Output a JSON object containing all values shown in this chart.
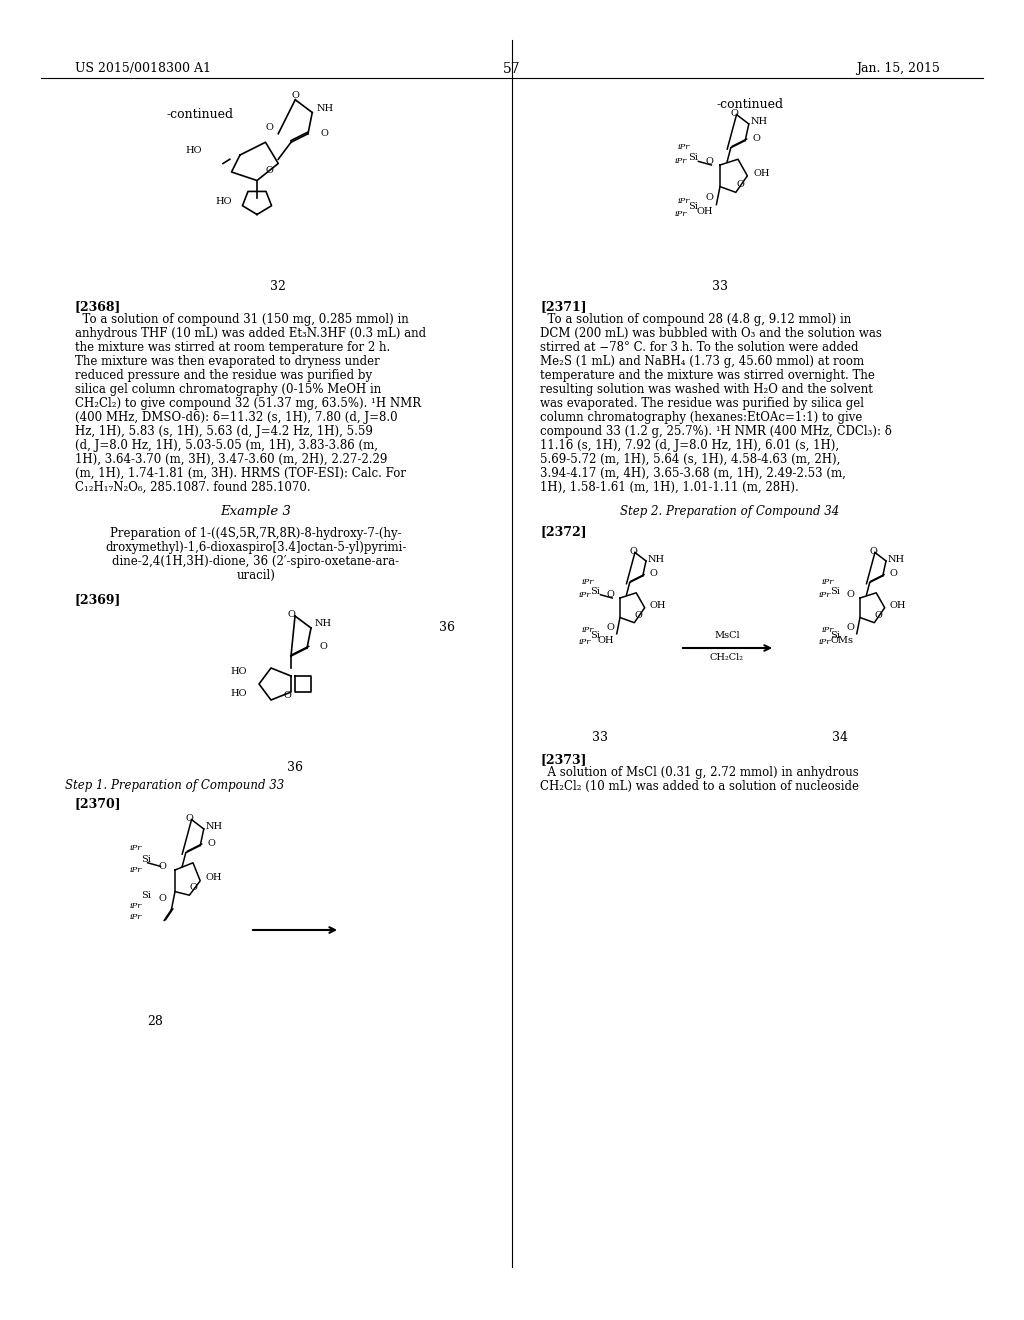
{
  "page_number": "57",
  "patent_number": "US 2015/0018300 A1",
  "patent_date": "Jan. 15, 2015",
  "background_color": "#ffffff",
  "text_color": "#000000",
  "figsize": [
    10.24,
    13.2
  ],
  "dpi": 100,
  "header_left": "US 2015/0018300 A1",
  "header_right": "Jan. 15, 2015",
  "header_center": "57",
  "continued_label_left": "-continued",
  "continued_label_right": "-continued",
  "compound32_label": "32",
  "compound33_label": "33",
  "compound36_label": "36",
  "compound34_label": "34",
  "compound28_label": "28",
  "paragraph_2368": "[2368]   To a solution of compound 31 (150 mg, 0.285 mmol) in anhydrous THF (10 mL) was added Et₃N.3HF (0.3 mL) and the mixture was stirred at room temperature for 2 h. The mixture was then evaporated to dryness under reduced pressure and the residue was purified by silica gel column chromatography (0-15% MeOH in CH₂Cl₂) to give compound 32 (51.37 mg, 63.5%). ¹H NMR (400 MHz, DMSO-d6): δ=11.32 (s, 1H), 7.80 (d, J=8.0 Hz, 1H), 5.83 (s, 1H), 5.63 (d, J=4.2 Hz, 1H), 5.59 (d, J=8.0 Hz, 1H), 5.03-5.05 (m, 1H), 3.83-3.86 (m, 1H), 3.64-3.70 (m, 3H), 3.47-3.60 (m, 2H), 2.27-2.29 (m, 1H), 1.74-1.81 (m, 3H). HRMS (TOF-ESI): Calc. For C₁₂H₁₇N₂O₆, 285.1087. found 285.1070.",
  "example3_title": "Example 3",
  "example3_subtitle": "Preparation of 1-((4S,5R,7R,8R)-8-hydroxy-7-(hy-\ndroxymethyl)-1,6-dioxaspiro[3.4]octan-5-yl)pyrimi-\ndine-2,4(1H,3H)-dione, 36 (2′-spiro-oxetane-ara-\nuracil)",
  "paragraph_2369": "[2369]",
  "step1_label": "Step 1. Preparation of Compound 33",
  "paragraph_2370": "[2370]",
  "paragraph_2371": "[2371]   To a solution of compound 28 (4.8 g, 9.12 mmol) in DCM (200 mL) was bubbled with O₃ and the solution was stirred at −78° C. for 3 h. To the solution were added Me₂S (1 mL) and NaBH₄ (1.73 g, 45.60 mmol) at room temperature and the mixture was stirred overnight. The resulting solution was washed with H₂O and the solvent was evaporated. The residue was purified by silica gel column chromatography (hexanes:EtOAc=1:1) to give compound 33 (1.2 g, 25.7%). ¹H NMR (400 MHz, CDCl₃): δ 11.16 (s, 1H), 7.92 (d, J=8.0 Hz, 1H), 6.01 (s, 1H), 5.69-5.72 (m, 1H), 5.64 (s, 1H), 4.58-4.63 (m, 2H), 3.94-4.17 (m, 4H), 3.65-3.68 (m, 1H), 2.49-2.53 (m, 1H), 1.58-1.61 (m, 1H), 1.01-1.11 (m, 28H).",
  "step2_label": "Step 2. Preparation of Compound 34",
  "paragraph_2372": "[2372]",
  "paragraph_2373": "[2373]   A solution of MsCl (0.31 g, 2.72 mmol) in anhy-drous CH₂Cl₂ (10 mL) was added to a solution of nucleoside",
  "arrow_label": "",
  "msci_label": "MsCl\nCH₂Cl₂"
}
